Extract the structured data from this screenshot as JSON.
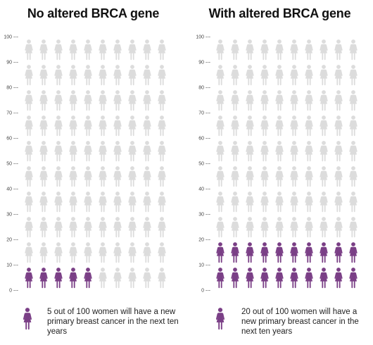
{
  "chart_data": [
    {
      "type": "pictogram",
      "title": "No altered BRCA gene",
      "y_ticks": [
        "0 ---",
        "10 ---",
        "20 ---",
        "30 ---",
        "40 ---",
        "50 ---",
        "60 ---",
        "70 ---",
        "80 ---",
        "90 ---",
        "100 ---"
      ],
      "ylim": [
        0,
        100
      ],
      "total": 100,
      "highlighted": 5,
      "caption": "5 out of 100 women will have a new primary breast cancer in the next ten years"
    },
    {
      "type": "pictogram",
      "title": "With altered BRCA gene",
      "y_ticks": [
        "0 ---",
        "10 ---",
        "20 ---",
        "30 ---",
        "40 ---",
        "50 ---",
        "60 ---",
        "70 ---",
        "80 ---",
        "90 ---",
        "100 ---"
      ],
      "ylim": [
        0,
        100
      ],
      "total": 100,
      "highlighted": 20,
      "caption": "20 out of 100 women will have a new primary breast cancer in the next ten years"
    }
  ],
  "colors": {
    "highlighted": "#7a3f86",
    "base": "#dcdcdc",
    "text": "#222222"
  },
  "icon": "woman-icon"
}
